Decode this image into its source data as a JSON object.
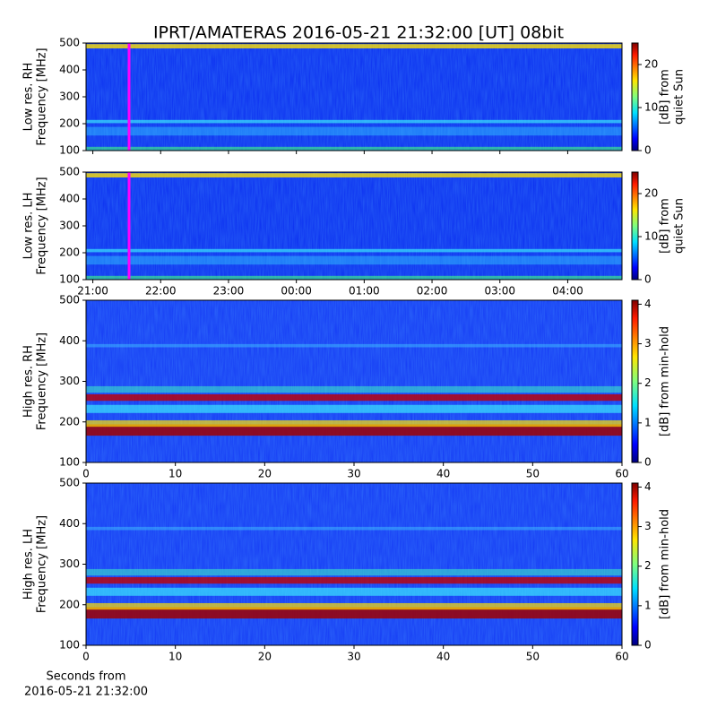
{
  "title": "IPRT/AMATERAS 2016-05-21 21:32:00 [UT]   08bit",
  "chart_data": [
    {
      "type": "heatmap",
      "ylabel": [
        "Low res. RH",
        "Frequency [MHz]"
      ],
      "ylim": [
        100,
        500
      ],
      "yticks": [
        100,
        200,
        300,
        400,
        500
      ],
      "colorbar_label": [
        "[dB] from",
        "quiet Sun"
      ],
      "clim": [
        0,
        25
      ],
      "cticks": [
        0,
        10,
        20
      ],
      "colormap": "jet"
    },
    {
      "type": "heatmap",
      "ylabel": [
        "Low res. LH",
        "Frequency [MHz]"
      ],
      "ylim": [
        100,
        500
      ],
      "yticks": [
        100,
        200,
        300,
        400,
        500
      ],
      "xlim": [
        20.9,
        28.8
      ],
      "xticks": [
        {
          "value": 21,
          "label": "21:00"
        },
        {
          "value": 22,
          "label": "22:00"
        },
        {
          "value": 23,
          "label": "23:00"
        },
        {
          "value": 24,
          "label": "00:00"
        },
        {
          "value": 25,
          "label": "01:00"
        },
        {
          "value": 26,
          "label": "02:00"
        },
        {
          "value": 27,
          "label": "03:00"
        },
        {
          "value": 28,
          "label": "04:00"
        }
      ],
      "colorbar_label": [
        "[dB] from",
        "quiet Sun"
      ],
      "clim": [
        0,
        25
      ],
      "cticks": [
        0,
        10,
        20
      ],
      "colormap": "jet"
    },
    {
      "type": "heatmap",
      "ylabel": [
        "High res. RH",
        "Frequency [MHz]"
      ],
      "ylim": [
        100,
        500
      ],
      "yticks": [
        100,
        200,
        300,
        400,
        500
      ],
      "xlim": [
        0,
        60
      ],
      "xticks": [
        0,
        10,
        20,
        30,
        40,
        50,
        60
      ],
      "colorbar_label": [
        "[dB] from min-hold"
      ],
      "clim": [
        0,
        4.1
      ],
      "cticks": [
        0,
        1,
        2,
        3,
        4
      ],
      "colormap": "jet"
    },
    {
      "type": "heatmap",
      "ylabel": [
        "High res. LH",
        "Frequency [MHz]"
      ],
      "ylim": [
        100,
        500
      ],
      "yticks": [
        100,
        200,
        300,
        400,
        500
      ],
      "xlim": [
        0,
        60
      ],
      "xticks": [
        0,
        10,
        20,
        30,
        40,
        50,
        60
      ],
      "xlabel": [
        "Seconds from",
        "2016-05-21 21:32:00"
      ],
      "colorbar_label": [
        "[dB] from min-hold"
      ],
      "clim": [
        0,
        4.1
      ],
      "cticks": [
        0,
        1,
        2,
        3,
        4
      ],
      "colormap": "jet"
    }
  ]
}
